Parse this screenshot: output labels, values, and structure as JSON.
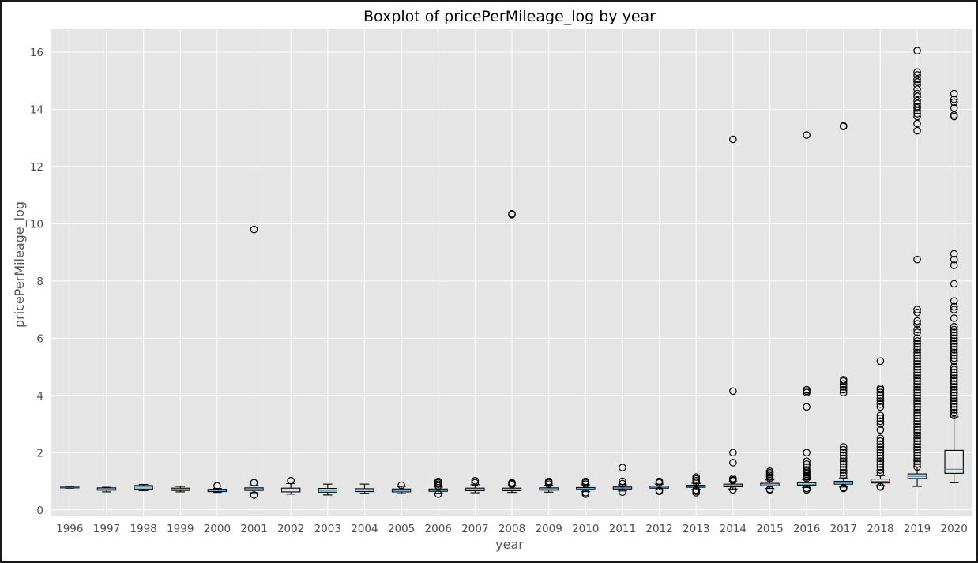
{
  "chart_data": {
    "type": "boxplot",
    "title": "Boxplot of pricePerMileage_log by year",
    "xlabel": "year",
    "ylabel": "pricePerMileage_log",
    "ylim": [
      -0.2,
      16.8
    ],
    "yticks": [
      0,
      2,
      4,
      6,
      8,
      10,
      12,
      14,
      16
    ],
    "grid": true,
    "style": "ggplot",
    "colors": {
      "background": "#e5e5e5",
      "grid": "#ffffff",
      "box": "#000000",
      "median": "#348abd",
      "outlier": "#000000"
    },
    "categories": [
      "1996",
      "1997",
      "1998",
      "1999",
      "2000",
      "2001",
      "2002",
      "2003",
      "2004",
      "2005",
      "2006",
      "2007",
      "2008",
      "2009",
      "2010",
      "2011",
      "2012",
      "2013",
      "2014",
      "2015",
      "2016",
      "2017",
      "2018",
      "2019",
      "2020"
    ],
    "boxes": [
      {
        "year": "1996",
        "whislo": 0.76,
        "q1": 0.77,
        "med": 0.79,
        "q3": 0.8,
        "whishi": 0.82,
        "fliers": []
      },
      {
        "year": "1997",
        "whislo": 0.63,
        "q1": 0.69,
        "med": 0.73,
        "q3": 0.77,
        "whishi": 0.79,
        "fliers": []
      },
      {
        "year": "1998",
        "whislo": 0.67,
        "q1": 0.73,
        "med": 0.8,
        "q3": 0.85,
        "whishi": 0.89,
        "fliers": []
      },
      {
        "year": "1999",
        "whislo": 0.63,
        "q1": 0.68,
        "med": 0.72,
        "q3": 0.76,
        "whishi": 0.82,
        "fliers": []
      },
      {
        "year": "2000",
        "whislo": 0.61,
        "q1": 0.64,
        "med": 0.68,
        "q3": 0.72,
        "whishi": 0.75,
        "fliers": [
          0.84
        ]
      },
      {
        "year": "2001",
        "whislo": 0.6,
        "q1": 0.68,
        "med": 0.73,
        "q3": 0.77,
        "whishi": 0.85,
        "fliers": [
          0.52,
          0.95,
          9.8
        ]
      },
      {
        "year": "2002",
        "whislo": 0.55,
        "q1": 0.63,
        "med": 0.7,
        "q3": 0.76,
        "whishi": 0.92,
        "fliers": [
          1.02
        ]
      },
      {
        "year": "2003",
        "whislo": 0.52,
        "q1": 0.62,
        "med": 0.68,
        "q3": 0.75,
        "whishi": 0.9,
        "fliers": []
      },
      {
        "year": "2004",
        "whislo": 0.58,
        "q1": 0.64,
        "med": 0.69,
        "q3": 0.74,
        "whishi": 0.9,
        "fliers": []
      },
      {
        "year": "2005",
        "whislo": 0.57,
        "q1": 0.63,
        "med": 0.68,
        "q3": 0.73,
        "whishi": 0.82,
        "fliers": [
          0.86
        ]
      },
      {
        "year": "2006",
        "whislo": 0.58,
        "q1": 0.65,
        "med": 0.69,
        "q3": 0.73,
        "whishi": 0.8,
        "fliers": [
          0.55,
          0.84,
          0.9,
          0.95,
          1.0
        ]
      },
      {
        "year": "2007",
        "whislo": 0.6,
        "q1": 0.67,
        "med": 0.71,
        "q3": 0.76,
        "whishi": 0.88,
        "fliers": [
          0.95,
          1.02
        ]
      },
      {
        "year": "2008",
        "whislo": 0.61,
        "q1": 0.67,
        "med": 0.71,
        "q3": 0.76,
        "whishi": 0.84,
        "fliers": [
          0.88,
          0.92,
          0.95,
          10.32,
          10.35
        ]
      },
      {
        "year": "2009",
        "whislo": 0.62,
        "q1": 0.69,
        "med": 0.73,
        "q3": 0.77,
        "whishi": 0.86,
        "fliers": [
          0.9,
          0.95,
          1.0
        ]
      },
      {
        "year": "2010",
        "whislo": 0.64,
        "q1": 0.71,
        "med": 0.74,
        "q3": 0.78,
        "whishi": 0.88,
        "fliers": [
          0.55,
          0.6,
          0.9,
          0.95,
          1.0
        ]
      },
      {
        "year": "2011",
        "whislo": 0.66,
        "q1": 0.73,
        "med": 0.77,
        "q3": 0.8,
        "whishi": 0.88,
        "fliers": [
          0.62,
          0.92,
          1.0,
          1.48
        ]
      },
      {
        "year": "2012",
        "whislo": 0.7,
        "q1": 0.76,
        "med": 0.79,
        "q3": 0.83,
        "whishi": 0.9,
        "fliers": [
          0.65,
          0.68,
          0.95,
          1.0
        ]
      },
      {
        "year": "2013",
        "whislo": 0.71,
        "q1": 0.79,
        "med": 0.82,
        "q3": 0.86,
        "whishi": 0.93,
        "fliers": [
          0.6,
          0.65,
          0.7,
          0.97,
          1.02,
          1.08,
          1.15
        ]
      },
      {
        "year": "2014",
        "whislo": 0.73,
        "q1": 0.81,
        "med": 0.85,
        "q3": 0.9,
        "whishi": 0.98,
        "fliers": [
          0.7,
          1.02,
          1.05,
          1.1,
          1.65,
          2.0,
          4.15,
          12.95
        ]
      },
      {
        "year": "2015",
        "whislo": 0.75,
        "q1": 0.84,
        "med": 0.88,
        "q3": 0.93,
        "whishi": 1.05,
        "fliers": [
          0.7,
          0.72,
          1.1,
          1.15,
          1.2,
          1.25,
          1.3,
          1.35
        ]
      },
      {
        "year": "2016",
        "whislo": 0.78,
        "q1": 0.86,
        "med": 0.9,
        "q3": 0.95,
        "whishi": 1.06,
        "fliers": [
          0.7,
          0.75,
          1.1,
          1.15,
          1.2,
          1.25,
          1.3,
          1.35,
          1.4,
          1.5,
          1.6,
          1.7,
          2.0,
          3.6,
          4.1,
          4.15,
          4.2,
          13.1
        ]
      },
      {
        "year": "2017",
        "whislo": 0.8,
        "q1": 0.9,
        "med": 0.95,
        "q3": 1.0,
        "whishi": 1.12,
        "fliers": [
          0.75,
          0.78,
          1.2,
          1.3,
          1.4,
          1.5,
          1.6,
          1.7,
          1.8,
          1.9,
          2.0,
          2.1,
          2.2,
          4.1,
          4.2,
          4.3,
          4.4,
          4.5,
          4.55,
          13.4,
          13.42
        ]
      },
      {
        "year": "2018",
        "whislo": 0.85,
        "q1": 0.94,
        "med": 1.0,
        "q3": 1.08,
        "whishi": 1.2,
        "fliers": [
          0.8,
          0.82,
          1.3,
          1.4,
          1.5,
          1.6,
          1.7,
          1.8,
          1.9,
          2.0,
          2.1,
          2.2,
          2.3,
          2.4,
          2.5,
          2.8,
          3.0,
          3.1,
          3.2,
          3.3,
          3.6,
          3.7,
          3.8,
          3.9,
          4.0,
          4.1,
          4.2,
          4.25,
          5.2
        ]
      },
      {
        "year": "2019",
        "whislo": 0.82,
        "q1": 1.1,
        "med": 1.17,
        "q3": 1.26,
        "whishi": 1.5,
        "fliers": [
          1.5,
          1.6,
          1.7,
          1.8,
          1.9,
          2.0,
          2.1,
          2.2,
          2.3,
          2.4,
          2.5,
          2.6,
          2.7,
          2.8,
          2.9,
          3.0,
          3.1,
          3.2,
          3.3,
          3.4,
          3.5,
          3.6,
          3.7,
          3.8,
          3.9,
          4.0,
          4.1,
          4.2,
          4.3,
          4.4,
          4.5,
          4.6,
          4.7,
          4.8,
          4.9,
          5.0,
          5.1,
          5.2,
          5.3,
          5.4,
          5.5,
          5.6,
          5.7,
          5.8,
          5.9,
          6.0,
          6.2,
          6.3,
          6.5,
          6.6,
          6.9,
          7.0,
          8.75,
          13.25,
          13.5,
          13.75,
          13.85,
          13.95,
          14.05,
          14.1,
          14.2,
          14.3,
          14.45,
          14.55,
          14.7,
          14.85,
          14.95,
          15.05,
          15.2,
          15.3,
          16.05
        ]
      },
      {
        "year": "2020",
        "whislo": 0.95,
        "q1": 1.28,
        "med": 1.42,
        "q3": 2.08,
        "whishi": 3.25,
        "fliers": [
          3.3,
          3.4,
          3.5,
          3.6,
          3.7,
          3.8,
          3.9,
          4.0,
          4.1,
          4.2,
          4.3,
          4.4,
          4.5,
          4.6,
          4.7,
          4.8,
          4.9,
          5.0,
          5.2,
          5.3,
          5.4,
          5.5,
          5.6,
          5.7,
          5.8,
          5.9,
          6.0,
          6.1,
          6.2,
          6.3,
          6.4,
          6.7,
          7.0,
          7.1,
          7.3,
          7.9,
          8.55,
          8.75,
          8.95,
          13.75,
          13.8,
          14.05,
          14.25,
          14.35,
          14.55
        ]
      }
    ]
  }
}
